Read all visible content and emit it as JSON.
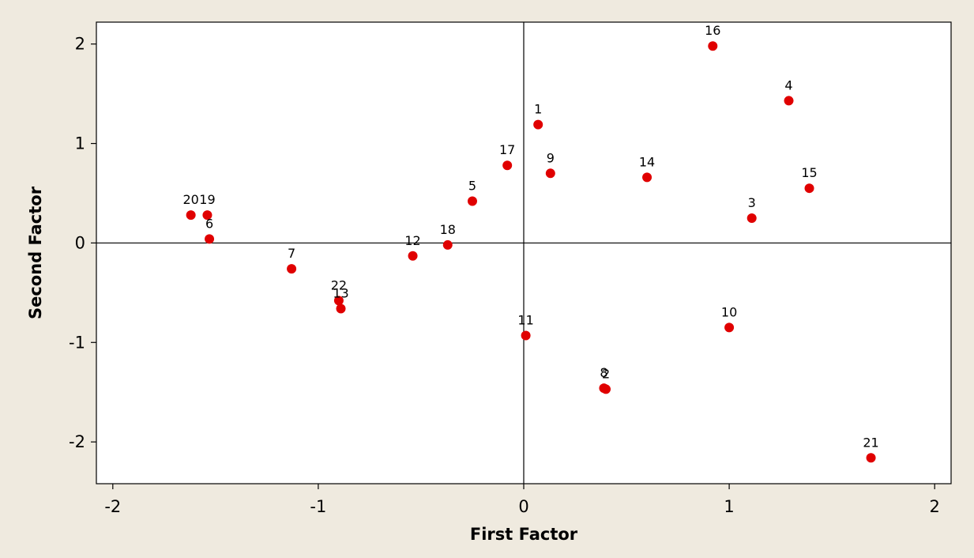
{
  "chart_data": {
    "type": "scatter",
    "title": "",
    "xlabel": "First Factor",
    "ylabel": "Second Factor",
    "xlim": [
      -2.08,
      2.08
    ],
    "ylim": [
      -2.42,
      2.22
    ],
    "x_ticks": [
      -2,
      -1,
      0,
      1,
      2
    ],
    "y_ticks": [
      2,
      1,
      0,
      -1,
      -2
    ],
    "x_tick_labels": [
      "-2",
      "-1",
      "0",
      "1",
      "2"
    ],
    "y_tick_labels": [
      "2",
      "1",
      "0",
      "-1",
      "-2"
    ],
    "reference_lines": {
      "x": 0,
      "y": 0
    },
    "grid": false,
    "legend": "none",
    "colors": {
      "marker": "#e00000",
      "frame": "#000000",
      "plot_background": "#ffffff",
      "page_background": "#efeadf"
    },
    "points": [
      {
        "label": "1",
        "x": 0.07,
        "y": 1.19
      },
      {
        "label": "2",
        "x": 0.4,
        "y": -1.47
      },
      {
        "label": "3",
        "x": 1.11,
        "y": 0.25
      },
      {
        "label": "4",
        "x": 1.29,
        "y": 1.43
      },
      {
        "label": "5",
        "x": -0.25,
        "y": 0.42
      },
      {
        "label": "6",
        "x": -1.53,
        "y": 0.04
      },
      {
        "label": "7",
        "x": -1.13,
        "y": -0.26
      },
      {
        "label": "8",
        "x": 0.39,
        "y": -1.46
      },
      {
        "label": "9",
        "x": 0.13,
        "y": 0.7
      },
      {
        "label": "10",
        "x": 1.0,
        "y": -0.85
      },
      {
        "label": "11",
        "x": 0.01,
        "y": -0.93
      },
      {
        "label": "12",
        "x": -0.54,
        "y": -0.13
      },
      {
        "label": "13",
        "x": -0.89,
        "y": -0.66
      },
      {
        "label": "14",
        "x": 0.6,
        "y": 0.66
      },
      {
        "label": "15",
        "x": 1.39,
        "y": 0.55
      },
      {
        "label": "16",
        "x": 0.92,
        "y": 1.98
      },
      {
        "label": "17",
        "x": -0.08,
        "y": 0.78
      },
      {
        "label": "18",
        "x": -0.37,
        "y": -0.02
      },
      {
        "label": "19",
        "x": -1.54,
        "y": 0.28
      },
      {
        "label": "20",
        "x": -1.62,
        "y": 0.28
      },
      {
        "label": "21",
        "x": 1.69,
        "y": -2.16
      },
      {
        "label": "22",
        "x": -0.9,
        "y": -0.58
      }
    ]
  }
}
